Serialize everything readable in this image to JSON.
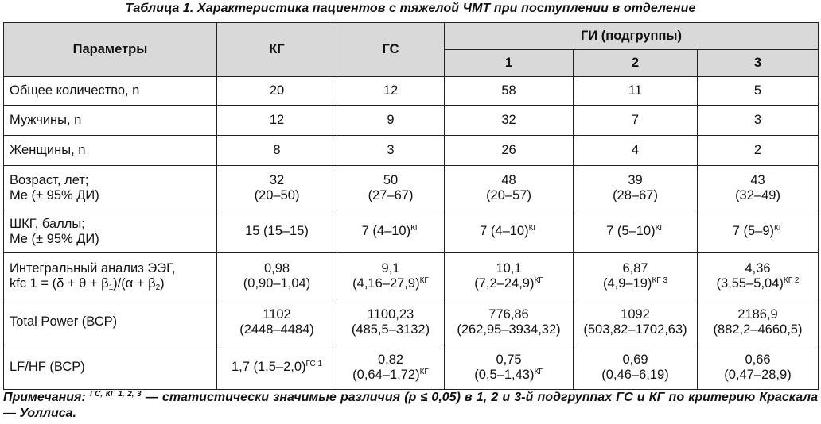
{
  "caption": "Таблица 1.  Характеристика пациентов с тяжелой ЧМТ при поступлении в отделение",
  "header": {
    "params": "Параметры",
    "kg": "КГ",
    "gs": "ГС",
    "gi": "ГИ (подгруппы)",
    "sub1": "1",
    "sub2": "2",
    "sub3": "3"
  },
  "rows": {
    "total": {
      "label": "Общее количество, n",
      "kg": "20",
      "gs": "12",
      "g1": "58",
      "g2": "11",
      "g3": "5"
    },
    "men": {
      "label": "Мужчины, n",
      "kg": "12",
      "gs": "9",
      "g1": "32",
      "g2": "7",
      "g3": "3"
    },
    "women": {
      "label": "Женщины, n",
      "kg": "8",
      "gs": "3",
      "g1": "26",
      "g2": "4",
      "g3": "2"
    },
    "age": {
      "label1": "Возраст, лет;",
      "label2": "Me (± 95% ДИ)",
      "kg_a": "32",
      "kg_b": "(20–50)",
      "gs_a": "50",
      "gs_b": "(27–67)",
      "g1_a": "48",
      "g1_b": "(20–57)",
      "g2_a": "39",
      "g2_b": "(28–67)",
      "g3_a": "43",
      "g3_b": "(32–49)"
    },
    "gcs": {
      "label1": "ШКГ, баллы;",
      "label2": "Me (± 95% ДИ)",
      "kg": "15 (15–15)",
      "gs": "7 (4–10)",
      "gs_sup": "КГ",
      "g1": "7 (4–10)",
      "g1_sup": "КГ",
      "g2": "7 (5–10)",
      "g2_sup": "КГ",
      "g3": "7 (5–9)",
      "g3_sup": "КГ"
    },
    "eeg": {
      "label1": "Интегральный анализ ЭЭГ,",
      "label2_a": "kfc 1 = (δ + θ + β",
      "label2_sub1": "1",
      "label2_b": ")/(α + β",
      "label2_sub2": "2",
      "label2_c": ")",
      "kg_a": "0,98",
      "kg_b": "(0,90–1,04)",
      "gs_a": "9,1",
      "gs_b": "(4,16–27,9)",
      "gs_sup": "КГ",
      "g1_a": "10,1",
      "g1_b": "(7,2–24,9)",
      "g1_sup": "КГ",
      "g2_a": "6,87",
      "g2_b": "(4,9–19)",
      "g2_sup": "КГ 3",
      "g3_a": "4,36",
      "g3_b": "(3,55–5,04)",
      "g3_sup": "КГ 2"
    },
    "tp": {
      "label": "Total Power (ВСР)",
      "kg_a": "1102",
      "kg_b": "(2448–4484)",
      "gs_a": "1100,23",
      "gs_b": "(485,5–3132)",
      "g1_a": "776,86",
      "g1_b": "(262,95–3934,32)",
      "g2_a": "1092",
      "g2_b": "(503,82–1702,63)",
      "g3_a": "2186,9",
      "g3_b": "(882,2–4660,5)"
    },
    "lfhf": {
      "label": "LF/HF (ВСР)",
      "kg": "1,7 (1,5–2,0)",
      "kg_sup": "ГС 1",
      "gs_a": "0,82",
      "gs_b": "(0,64–1,72)",
      "gs_sup": "КГ",
      "g1_a": "0,75",
      "g1_b": "(0,5–1,43)",
      "g1_sup": "КГ",
      "g2_a": "0,69",
      "g2_b": "(0,46–6,19)",
      "g3_a": "0,66",
      "g3_b": "(0,47–28,9)"
    }
  },
  "note": {
    "lead": "Примечания: ",
    "sup": "ГС, КГ 1, 2, 3",
    "text": " — статистически значимые различия (р ≤ 0,05) в 1, 2 и 3-й подгруппах ГС и КГ по критерию Краскала — Уоллиса."
  }
}
